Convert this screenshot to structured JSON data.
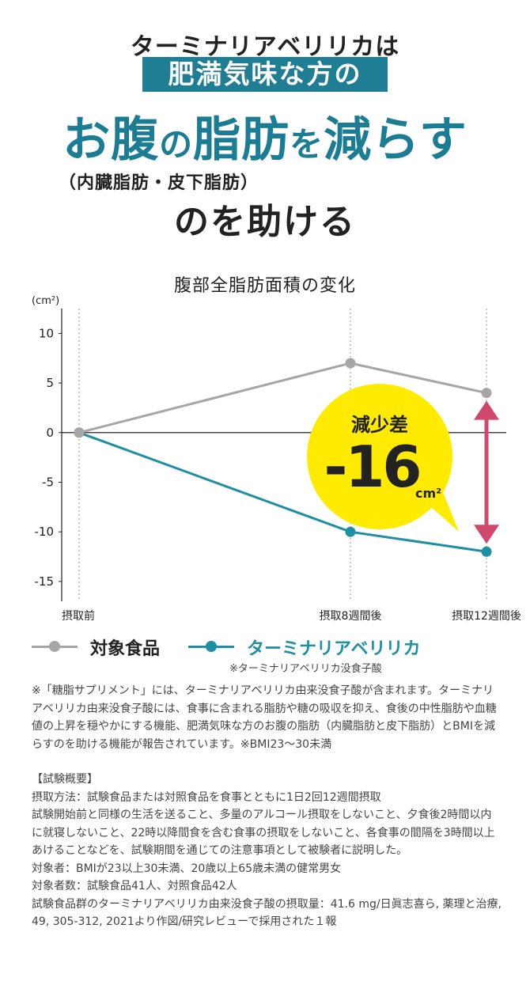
{
  "hero": {
    "line1": "ターミナリアベリリカは",
    "band": "肥満気味な方の",
    "main": [
      "お腹",
      "の",
      "脂肪",
      "を",
      "減らす"
    ],
    "sub": "（内臓脂肪・皮下脂肪）",
    "line4": "のを助ける"
  },
  "chart_data": {
    "type": "line",
    "title": "腹部全脂肪面積の変化",
    "ylabel": "(cm²)",
    "ylim": [
      -17,
      12.5
    ],
    "yticks": [
      10,
      5,
      0,
      -5,
      -10,
      -15
    ],
    "x": [
      "摂取前",
      "摂取8週間後",
      "摂取12週間後"
    ],
    "series": [
      {
        "name": "対象食品",
        "values": [
          0,
          7,
          4
        ],
        "color": "#a6a6a6"
      },
      {
        "name": "ターミナリアベリリカ",
        "values": [
          0,
          -10,
          -12
        ],
        "color": "#1f8fa3"
      }
    ],
    "annotation": {
      "label": "減少差",
      "value": "-16",
      "unit": "cm²",
      "bubble_color": "#ffeb00",
      "arrow_color": "#d2486d"
    }
  },
  "legend": {
    "control_label": "対象食品",
    "test_label": "ターミナリアベリリカ",
    "test_note": "※ターミナリアベリリカ没食子酸"
  },
  "notes": {
    "para1": "※「糖脂サプリメント」には、ターミナリアベリリカ由来没食子酸が含まれます。ターミナリアベリリカ由来没食子酸には、食事に含まれる脂肪や糖の吸収を抑え、食後の中性脂肪や血糖値の上昇を穏やかにする機能、肥満気味な方のお腹の脂肪（内臓脂肪と皮下脂肪）とBMIを減らすのを助ける機能が報告されています。※BMI23〜30未満",
    "heading": "【試験概要】",
    "method": "摂取方法：試験食品または対照食品を食事とともに1日2回12週間摂取",
    "conditions": "試験開始前と同様の生活を送ること、多量のアルコール摂取をしないこと、夕食後2時間以内に就寝しないこと、22時以降間食を含む食事の摂取をしないこと、各食事の間隔を3時間以上あけることなどを、試験期間を通じての注意事項として被験者に説明した。",
    "subjects": "対象者：BMIが23以上30未満、20歳以上65歳未満の健常男女",
    "count": "対象者数：試験食品41人、対照食品42人",
    "source": "試験食品群のターミナリアベリリカ由来没食子酸の摂取量：41.6 mg/日眞志喜ら, 薬理と治療, 49, 305-312, 2021より作図/研究レビューで採用された１報"
  }
}
